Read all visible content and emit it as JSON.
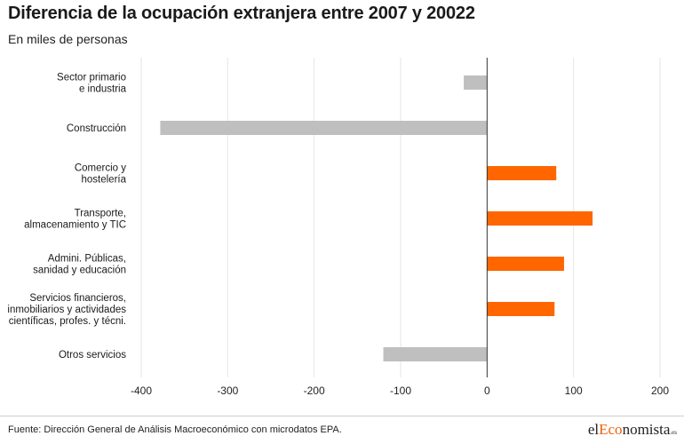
{
  "title": "Diferencia de la ocupación extranjera entre 2007 y 20022",
  "subtitle": "En miles de personas",
  "footer": {
    "source": "Fuente: Dirección General de Análisis Macroeconómico con microdatos EPA.",
    "brand_el": "el",
    "brand_eco": "Eco",
    "brand_nomista": "nomista",
    "brand_es": ".es"
  },
  "colors": {
    "positive": "#ff6600",
    "negative": "#bfbfbf",
    "grid": "#e6e6e6",
    "zero_line": "#333333"
  },
  "chart_data": {
    "type": "bar",
    "orientation": "horizontal",
    "categories": [
      [
        "Sector primario",
        "e industria"
      ],
      [
        "Construcción"
      ],
      [
        "Comercio y",
        "hostelería"
      ],
      [
        "Transporte,",
        "almacenamiento y TIC"
      ],
      [
        "Admini. Públicas,",
        "sanidad y educación"
      ],
      [
        "Servicios financieros,",
        "inmobiliarios y actividades",
        "científicas, profes. y técni."
      ],
      [
        "Otros servicios"
      ]
    ],
    "values": [
      -27,
      -378,
      80,
      122,
      89,
      78,
      -120
    ],
    "xlim": [
      -400,
      200
    ],
    "xticks": [
      -400,
      -300,
      -200,
      -100,
      0,
      100,
      200
    ],
    "grid": true
  }
}
